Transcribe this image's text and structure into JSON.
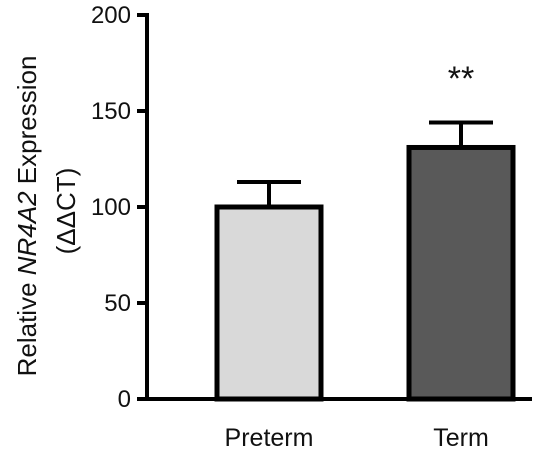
{
  "chart_data": {
    "type": "bar",
    "categories": [
      "Preterm",
      "Term"
    ],
    "values": [
      100,
      131
    ],
    "error_upper": [
      113,
      144
    ],
    "ylabel_prefix": "Relative ",
    "ylabel_gene": "NR4A2",
    "ylabel_suffix": " Expression",
    "ylabel_line2": "(ΔΔCT)",
    "ylim": [
      0,
      200
    ],
    "yticks": [
      "0",
      "50",
      "100",
      "150",
      "200"
    ],
    "significance": [
      "",
      "**"
    ],
    "colors": [
      "#d9d9d9",
      "#595959"
    ],
    "grid": false
  }
}
